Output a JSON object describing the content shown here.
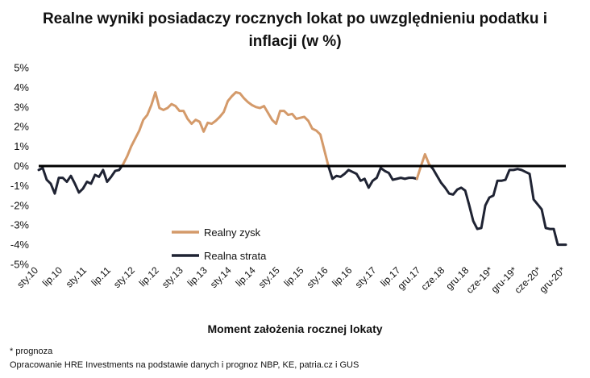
{
  "chart_data": {
    "type": "line",
    "title_line1": "Realne wyniki posiadaczy rocznych lokat po uwzględnieniu podatku i",
    "title_line2": "inflacji (w %)",
    "xlabel": "Moment założenia rocznej lokaty",
    "ylabel": "",
    "ylim": [
      -5,
      5
    ],
    "yticks": [
      5,
      4,
      3,
      2,
      1,
      0,
      -1,
      -2,
      -3,
      -4,
      -5
    ],
    "ytick_labels": [
      "5%",
      "4%",
      "3%",
      "2%",
      "1%",
      "0%",
      "-1%",
      "-2%",
      "-3%",
      "-4%",
      "-5%"
    ],
    "x_month_count": 132,
    "xticks": [
      {
        "label": "sty.10",
        "month": 0
      },
      {
        "label": "lip.10",
        "month": 6
      },
      {
        "label": "sty.11",
        "month": 12
      },
      {
        "label": "lip.11",
        "month": 18
      },
      {
        "label": "sty.12",
        "month": 24
      },
      {
        "label": "lip.12",
        "month": 30
      },
      {
        "label": "sty.13",
        "month": 36
      },
      {
        "label": "lip.13",
        "month": 42
      },
      {
        "label": "sty.14",
        "month": 48
      },
      {
        "label": "lip.14",
        "month": 54
      },
      {
        "label": "sty.15",
        "month": 60
      },
      {
        "label": "lip.15",
        "month": 66
      },
      {
        "label": "sty.16",
        "month": 72
      },
      {
        "label": "lip.16",
        "month": 78
      },
      {
        "label": "sty.17",
        "month": 84
      },
      {
        "label": "lip.17",
        "month": 90
      },
      {
        "label": "gru.17",
        "month": 95
      },
      {
        "label": "cze.18",
        "month": 101
      },
      {
        "label": "gru.18",
        "month": 107
      },
      {
        "label": "cze-19*",
        "month": 113
      },
      {
        "label": "gru-19*",
        "month": 119
      },
      {
        "label": "cze-20*",
        "month": 125
      },
      {
        "label": "gru-20*",
        "month": 131
      }
    ],
    "legend": {
      "placement": "lower-center",
      "entries": [
        {
          "label": "Realny zysk",
          "color": "#d49a6a"
        },
        {
          "label": "Realna strata",
          "color": "#1f2333"
        }
      ]
    },
    "zero_line_color": "#000000",
    "values": [
      -0.2,
      -0.1,
      -0.7,
      -0.9,
      -1.4,
      -0.6,
      -0.6,
      -0.8,
      -0.5,
      -0.9,
      -1.35,
      -1.15,
      -0.8,
      -0.9,
      -0.45,
      -0.55,
      -0.2,
      -0.8,
      -0.55,
      -0.25,
      -0.2,
      0.1,
      0.5,
      1.0,
      1.4,
      1.8,
      2.35,
      2.6,
      3.1,
      3.75,
      2.95,
      2.85,
      2.95,
      3.15,
      3.05,
      2.8,
      2.8,
      2.4,
      2.15,
      2.35,
      2.25,
      1.75,
      2.2,
      2.15,
      2.3,
      2.5,
      2.75,
      3.3,
      3.55,
      3.75,
      3.7,
      3.45,
      3.25,
      3.1,
      3.0,
      2.95,
      3.05,
      2.7,
      2.35,
      2.15,
      2.8,
      2.8,
      2.6,
      2.65,
      2.4,
      2.45,
      2.5,
      2.3,
      1.9,
      1.8,
      1.6,
      0.8,
      0.0,
      -0.65,
      -0.5,
      -0.55,
      -0.4,
      -0.2,
      -0.3,
      -0.4,
      -0.75,
      -0.65,
      -1.1,
      -0.75,
      -0.6,
      -0.1,
      -0.25,
      -0.35,
      -0.7,
      -0.65,
      -0.6,
      -0.65,
      -0.6,
      -0.6,
      -0.65,
      0.0,
      0.6,
      0.1,
      -0.15,
      -0.5,
      -0.85,
      -1.1,
      -1.4,
      -1.45,
      -1.2,
      -1.1,
      -1.25,
      -2.0,
      -2.8,
      -3.2,
      -3.15,
      -2.0,
      -1.6,
      -1.5,
      -0.75,
      -0.75,
      -0.7,
      -0.2,
      -0.2,
      -0.15,
      -0.2,
      -0.3,
      -0.4,
      -1.7,
      -1.95,
      -2.2,
      -3.15,
      -3.2,
      -3.2,
      -4.0,
      -4.0,
      -4.0
    ],
    "colors": {
      "gain": "#d49a6a",
      "loss": "#1f2333",
      "axis": "#000000"
    }
  },
  "footnotes": {
    "note": "* prognoza",
    "source": "Opracowanie HRE Investments na podstawie danych i prognoz NBP, KE, patria.cz  i GUS"
  }
}
